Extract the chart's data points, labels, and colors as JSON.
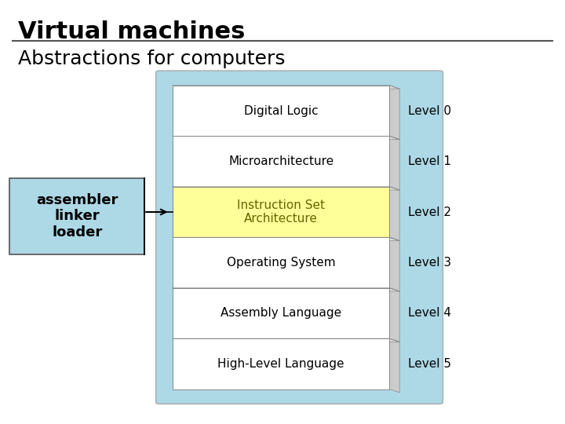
{
  "title": "Virtual machines",
  "subtitle": "Abstractions for computers",
  "bg_color": "#ffffff",
  "diagram_bg": "#add8e6",
  "levels": [
    {
      "label": "High-Level Language",
      "level": "Level 5",
      "color": "#ffffff",
      "text_color": "#000000"
    },
    {
      "label": "Assembly Language",
      "level": "Level 4",
      "color": "#ffffff",
      "text_color": "#000000"
    },
    {
      "label": "Operating System",
      "level": "Level 3",
      "color": "#ffffff",
      "text_color": "#000000"
    },
    {
      "label": "Instruction Set\nArchitecture",
      "level": "Level 2",
      "color": "#ffff99",
      "text_color": "#666600"
    },
    {
      "label": "Microarchitecture",
      "level": "Level 1",
      "color": "#ffffff",
      "text_color": "#000000"
    },
    {
      "label": "Digital Logic",
      "level": "Level 0",
      "color": "#ffffff",
      "text_color": "#000000"
    }
  ],
  "annotation_box": {
    "text": "assembler\nlinker\nloader",
    "bg": "#add8e6",
    "text_color": "#000000"
  },
  "title_fontsize": 22,
  "subtitle_fontsize": 18,
  "level_fontsize": 11,
  "label_fontsize": 11
}
